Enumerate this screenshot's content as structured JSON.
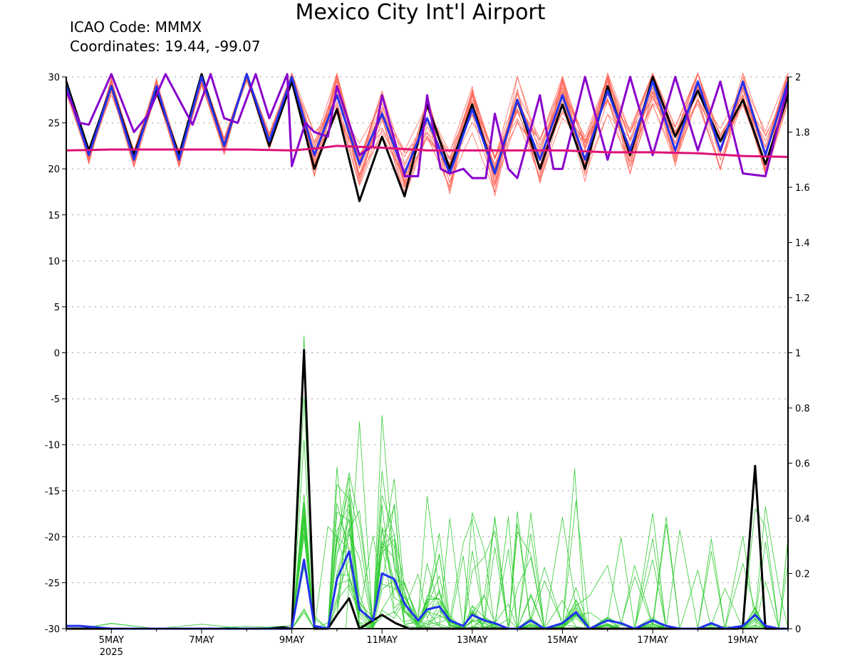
{
  "header": {
    "title": "Mexico City Int'l Airport",
    "icao": "ICAO Code: MMMX",
    "coords": "Coordinates: 19.44, -99.07"
  },
  "chart_data": {
    "type": "line",
    "title": "Mexico City Int'l Airport",
    "x_ticks": [
      "5MAY",
      "7MAY",
      "9MAY",
      "11MAY",
      "13MAY",
      "15MAY",
      "17MAY",
      "19MAY"
    ],
    "x_tick_days": [
      5,
      7,
      9,
      11,
      13,
      15,
      17,
      19
    ],
    "year_label": "2025",
    "x_range_days": [
      4.0,
      20.0
    ],
    "left_axis": {
      "ylim": [
        -30,
        30
      ],
      "ticks": [
        30,
        25,
        20,
        15,
        10,
        5,
        0,
        -5,
        -10,
        -15,
        -20,
        -25,
        -30
      ]
    },
    "right_axis": {
      "ylim": [
        0,
        2
      ],
      "ticks": [
        "2",
        "1.8",
        "1.6",
        "1.4",
        "1.2",
        "1",
        "0.8",
        "0.6",
        "0.4",
        "0.2",
        "0"
      ]
    },
    "grid": "dotted-horizontal",
    "colors": {
      "temperature_members": "#ff6b5e",
      "precip_members": "#33cc33",
      "black": "#000000",
      "blue": "#2233ee",
      "purple": "#8800cc",
      "magenta": "#dd1177"
    },
    "temperature_series": [
      {
        "color": "black",
        "x": [
          4.0,
          4.5,
          5.0,
          5.5,
          6.0,
          6.5,
          7.0,
          7.5,
          8.0,
          8.5,
          9.0,
          9.5,
          10.0,
          10.5,
          11.0,
          11.5,
          12.0,
          12.5,
          13.0,
          13.5,
          14.0,
          14.5,
          15.0,
          15.5,
          16.0,
          16.5,
          17.0,
          17.5,
          18.0,
          18.5,
          19.0,
          19.5,
          20.0
        ],
        "y": [
          29.5,
          22.0,
          29.0,
          21.5,
          28.5,
          21.5,
          30.5,
          22.5,
          30.5,
          22.5,
          29.5,
          20.0,
          26.5,
          16.5,
          23.5,
          17.0,
          27.0,
          20.0,
          27.0,
          19.5,
          27.5,
          20.0,
          27.0,
          20.0,
          29.0,
          21.5,
          30.0,
          23.5,
          28.5,
          23.0,
          27.5,
          20.5,
          28.0
        ]
      },
      {
        "color": "blue",
        "x": [
          4.0,
          4.5,
          5.0,
          5.5,
          6.0,
          6.5,
          7.0,
          7.5,
          8.0,
          8.5,
          9.0,
          9.5,
          10.0,
          10.5,
          11.0,
          11.5,
          12.0,
          12.5,
          13.0,
          13.5,
          14.0,
          14.5,
          15.0,
          15.5,
          16.0,
          16.5,
          17.0,
          17.5,
          18.0,
          18.5,
          19.0,
          19.5,
          20.0
        ],
        "y": [
          29.0,
          21.5,
          29.0,
          21.0,
          29.0,
          21.0,
          30.0,
          22.5,
          30.5,
          23.0,
          30.0,
          21.5,
          28.0,
          20.5,
          26.0,
          19.5,
          25.5,
          19.5,
          26.5,
          19.5,
          27.5,
          21.0,
          28.0,
          21.0,
          28.5,
          22.0,
          29.5,
          22.0,
          29.5,
          22.0,
          29.5,
          21.5,
          29.5
        ]
      },
      {
        "color": "purple",
        "x": [
          4.0,
          4.3,
          4.5,
          5.0,
          5.5,
          5.8,
          6.2,
          6.8,
          7.2,
          7.5,
          7.8,
          8.2,
          8.5,
          8.9,
          9.0,
          9.3,
          9.5,
          9.8,
          10.0,
          10.5,
          10.8,
          11.0,
          11.5,
          11.8,
          12.0,
          12.3,
          12.5,
          12.8,
          13.0,
          13.3,
          13.5,
          13.8,
          14.0,
          14.5,
          14.8,
          15.0,
          15.5,
          16.0,
          16.5,
          17.0,
          17.5,
          18.0,
          18.5,
          19.0,
          19.5,
          20.0
        ],
        "y": [
          28.5,
          25.0,
          24.8,
          31.5,
          24.0,
          25.8,
          31.0,
          24.8,
          31.0,
          25.5,
          25.0,
          30.5,
          25.5,
          30.5,
          20.3,
          25.0,
          24.0,
          23.5,
          29.0,
          21.5,
          22.5,
          28.0,
          19.2,
          19.2,
          28.0,
          20.0,
          19.5,
          20.0,
          19.0,
          19.0,
          26.0,
          20.0,
          19.0,
          28.0,
          20.0,
          20.0,
          30.0,
          21.0,
          30.0,
          21.5,
          30.0,
          22.0,
          29.5,
          19.5,
          19.2,
          29.0
        ]
      },
      {
        "color": "magenta",
        "x": [
          4.0,
          5.0,
          6.0,
          7.0,
          8.0,
          9.0,
          9.5,
          10.0,
          10.5,
          11.0,
          12.0,
          13.0,
          14.0,
          15.0,
          16.0,
          17.0,
          18.0,
          19.0,
          20.0
        ],
        "y": [
          22.0,
          22.1,
          22.1,
          22.1,
          22.1,
          22.0,
          22.2,
          22.5,
          22.4,
          22.3,
          22.0,
          22.0,
          22.0,
          22.0,
          21.8,
          21.8,
          21.7,
          21.4,
          21.3
        ]
      }
    ],
    "precip_series": [
      {
        "color": "black",
        "x": [
          4.0,
          8.5,
          8.8,
          9.0,
          9.27,
          9.5,
          9.8,
          10.0,
          10.27,
          10.5,
          11.0,
          11.3,
          11.6,
          12.0,
          18.6,
          18.9,
          19.0,
          19.27,
          19.5,
          20.0
        ],
        "y": [
          0.0,
          0.0,
          0.005,
          0.0,
          1.01,
          0.0,
          0.0,
          0.05,
          0.11,
          0.0,
          0.05,
          0.02,
          0.0,
          0.0,
          0.0,
          0.0,
          0.01,
          0.59,
          0.0,
          0.0
        ]
      },
      {
        "color": "blue",
        "x": [
          4.0,
          4.3,
          5.0,
          6.0,
          7.0,
          8.0,
          9.0,
          9.27,
          9.5,
          9.8,
          10.0,
          10.27,
          10.5,
          10.8,
          11.0,
          11.27,
          11.5,
          11.8,
          12.0,
          12.27,
          12.5,
          12.8,
          13.0,
          13.27,
          13.5,
          13.8,
          14.0,
          14.3,
          14.6,
          15.0,
          15.3,
          15.6,
          16.0,
          16.3,
          16.6,
          17.0,
          17.3,
          17.6,
          18.0,
          18.3,
          18.6,
          19.0,
          19.27,
          19.5,
          19.8,
          20.0
        ],
        "y": [
          0.01,
          0.01,
          0.0,
          0.0,
          0.0,
          0.0,
          0.0,
          0.25,
          0.01,
          0.0,
          0.18,
          0.28,
          0.07,
          0.03,
          0.2,
          0.18,
          0.09,
          0.03,
          0.07,
          0.08,
          0.03,
          0.01,
          0.05,
          0.03,
          0.02,
          0.0,
          0.0,
          0.03,
          0.0,
          0.02,
          0.06,
          0.0,
          0.03,
          0.02,
          0.0,
          0.03,
          0.01,
          0.0,
          0.0,
          0.02,
          0.0,
          0.01,
          0.05,
          0.01,
          0.0,
          0.0
        ]
      }
    ]
  }
}
